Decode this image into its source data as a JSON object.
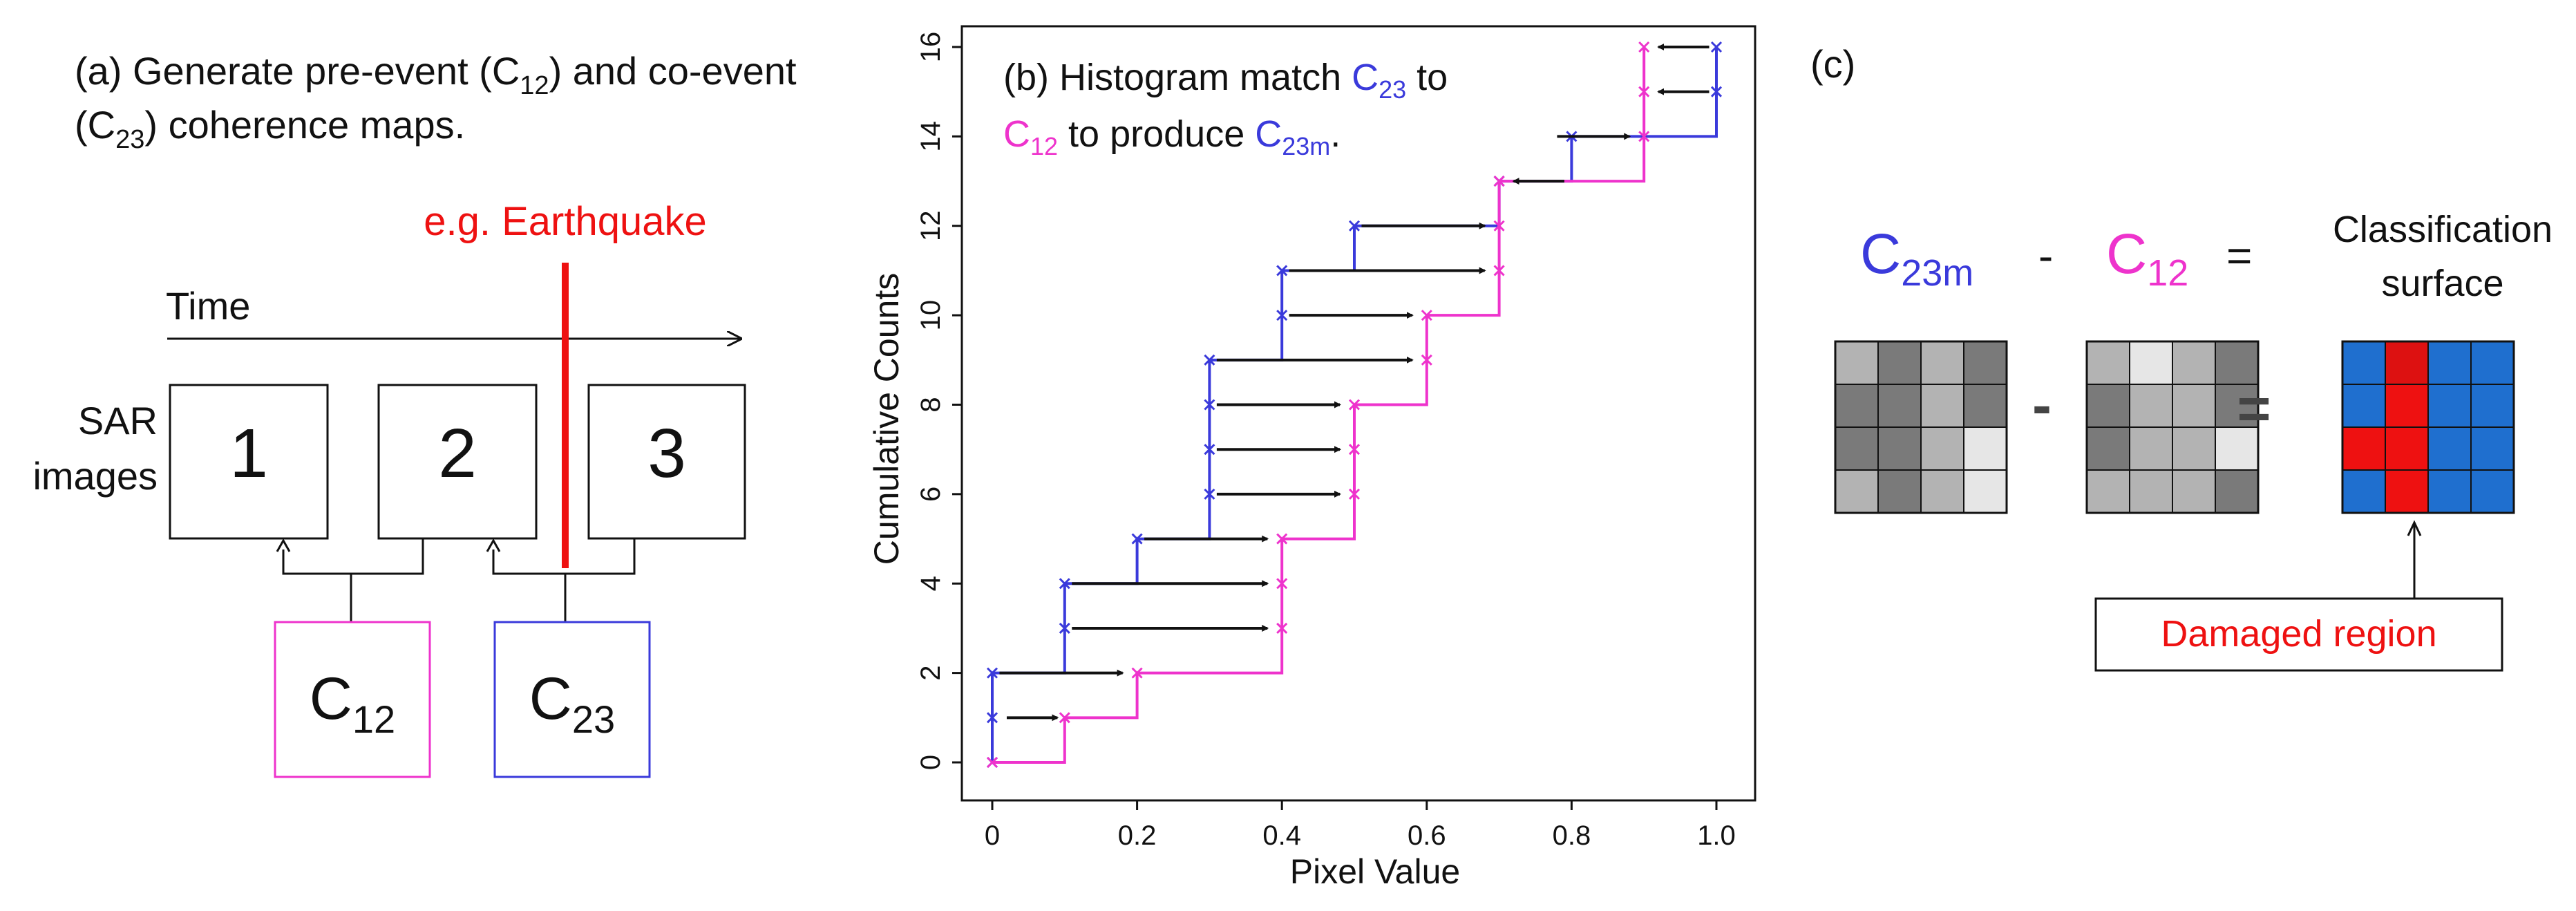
{
  "colors": {
    "pink": "#ee33cc",
    "blue": "#3a3adb",
    "red": "#ee1111",
    "black": "#111111",
    "surface_blue": "#1f6fcf",
    "surface_red": "#ee1111",
    "bar_blue": "#5050ff",
    "bar_pink": "#ff44dd"
  },
  "panel_a": {
    "line1_pre": "(a) Generate pre-event (C",
    "line1_sub": "12",
    "line1_post": ")  and co-event",
    "line2_pre": "(C",
    "line2_sub": "23",
    "line2_post": ") coherence maps.",
    "event_label": "e.g. Earthquake",
    "time_label": "Time",
    "sar_label_1": "SAR",
    "sar_label_2": "images",
    "boxes": [
      "1",
      "2",
      "3"
    ],
    "c12_main": "C",
    "c12_sub": "12",
    "c23_main": "C",
    "c23_sub": "23"
  },
  "panel_b": {
    "title1_pre": "(b) Histogram match ",
    "title1_c": "C",
    "title1_sub": "23",
    "title1_post": " to",
    "title2_c": "C",
    "title2_sub": "12",
    "title2_mid": " to produce ",
    "title2_c2": "C",
    "title2_sub2": "23m",
    "title2_post": "."
  },
  "chart_data": {
    "type": "line",
    "title": "(b) Histogram match C23 to C12 to produce C23m.",
    "xlabel": "Pixel Value",
    "ylabel": "Cumulative Counts",
    "xlim": [
      0,
      1.0
    ],
    "ylim": [
      0,
      16
    ],
    "xticks": [
      0,
      0.2,
      0.4,
      0.6,
      0.8,
      1.0
    ],
    "xtick_labels": [
      "0",
      "0.2",
      "0.4",
      "0.6",
      "0.8",
      "1.0"
    ],
    "yticks": [
      0,
      2,
      4,
      6,
      8,
      10,
      12,
      14,
      16
    ],
    "ytick_labels": [
      "0",
      "2",
      "4",
      "6",
      "8",
      "10",
      "12",
      "14",
      "16"
    ],
    "series": [
      {
        "name": "C23",
        "color": "#3a3adb",
        "points": [
          [
            0,
            0
          ],
          [
            0,
            1
          ],
          [
            0,
            2
          ],
          [
            0.1,
            3
          ],
          [
            0.1,
            4
          ],
          [
            0.2,
            5
          ],
          [
            0.3,
            6
          ],
          [
            0.3,
            7
          ],
          [
            0.3,
            8
          ],
          [
            0.3,
            9
          ],
          [
            0.4,
            10
          ],
          [
            0.4,
            11
          ],
          [
            0.5,
            12
          ],
          [
            0.7,
            13
          ],
          [
            0.8,
            14
          ],
          [
            1.0,
            15
          ],
          [
            1.0,
            16
          ]
        ]
      },
      {
        "name": "C12",
        "color": "#ee33cc",
        "points": [
          [
            0,
            0
          ],
          [
            0.1,
            1
          ],
          [
            0.2,
            2
          ],
          [
            0.4,
            3
          ],
          [
            0.4,
            4
          ],
          [
            0.4,
            5
          ],
          [
            0.5,
            6
          ],
          [
            0.5,
            7
          ],
          [
            0.5,
            8
          ],
          [
            0.6,
            9
          ],
          [
            0.6,
            10
          ],
          [
            0.7,
            11
          ],
          [
            0.7,
            12
          ],
          [
            0.7,
            13
          ],
          [
            0.9,
            14
          ],
          [
            0.9,
            15
          ],
          [
            0.9,
            16
          ]
        ]
      }
    ],
    "arrows": [
      {
        "y": 1,
        "from": 0.02,
        "to": 0.09
      },
      {
        "y": 2,
        "from": 0.01,
        "to": 0.18
      },
      {
        "y": 3,
        "from": 0.11,
        "to": 0.38
      },
      {
        "y": 4,
        "from": 0.11,
        "to": 0.38
      },
      {
        "y": 5,
        "from": 0.21,
        "to": 0.38
      },
      {
        "y": 6,
        "from": 0.31,
        "to": 0.48
      },
      {
        "y": 7,
        "from": 0.31,
        "to": 0.48
      },
      {
        "y": 8,
        "from": 0.31,
        "to": 0.48
      },
      {
        "y": 9,
        "from": 0.31,
        "to": 0.58
      },
      {
        "y": 10,
        "from": 0.41,
        "to": 0.58
      },
      {
        "y": 11,
        "from": 0.41,
        "to": 0.68
      },
      {
        "y": 12,
        "from": 0.51,
        "to": 0.68
      },
      {
        "y": 13,
        "from": 0.79,
        "to": 0.72
      },
      {
        "y": 14,
        "from": 0.78,
        "to": 0.88
      },
      {
        "y": 15,
        "from": 0.99,
        "to": 0.92
      },
      {
        "y": 16,
        "from": 0.99,
        "to": 0.92
      }
    ]
  },
  "panel_c": {
    "label": "(c)",
    "c23m_main": "C",
    "c23m_sub": "23m",
    "minus": "-",
    "c12_main": "C",
    "c12_sub": "12",
    "equals": "=",
    "result_line1": "Classification",
    "result_line2": "surface",
    "damaged_label": "Damaged region",
    "grid1": [
      [
        "#b3b3b3",
        "#7a7a7a",
        "#b3b3b3",
        "#7a7a7a"
      ],
      [
        "#7a7a7a",
        "#7a7a7a",
        "#b3b3b3",
        "#7a7a7a"
      ],
      [
        "#7a7a7a",
        "#7a7a7a",
        "#b3b3b3",
        "#e6e6e6"
      ],
      [
        "#b3b3b3",
        "#7a7a7a",
        "#b3b3b3",
        "#e6e6e6"
      ]
    ],
    "grid2": [
      [
        "#b3b3b3",
        "#e6e6e6",
        "#b3b3b3",
        "#7a7a7a"
      ],
      [
        "#7a7a7a",
        "#b3b3b3",
        "#b3b3b3",
        "#7a7a7a"
      ],
      [
        "#7a7a7a",
        "#b3b3b3",
        "#b3b3b3",
        "#e6e6e6"
      ],
      [
        "#b3b3b3",
        "#b3b3b3",
        "#b3b3b3",
        "#7a7a7a"
      ]
    ],
    "grid3": [
      [
        "#1f6fcf",
        "#dd1111",
        "#1f6fcf",
        "#1f6fcf"
      ],
      [
        "#1f6fcf",
        "#ee1111",
        "#1f6fcf",
        "#1f6fcf"
      ],
      [
        "#ee1111",
        "#ee1111",
        "#1f6fcf",
        "#1f6fcf"
      ],
      [
        "#1f6fcf",
        "#ee1111",
        "#1f6fcf",
        "#1f6fcf"
      ]
    ]
  }
}
